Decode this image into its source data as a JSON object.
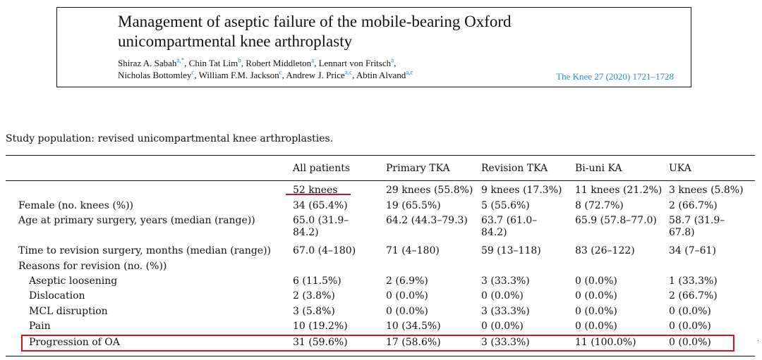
{
  "header": {
    "title_line1": "Management of aseptic failure of the mobile-bearing Oxford",
    "title_line2": "unicompartmental knee arthroplasty",
    "authors": [
      {
        "name": "Shiraz A. Sabah",
        "aff": "a,*",
        "sep": ", "
      },
      {
        "name": "Chin Tat Lim",
        "aff": "b",
        "sep": ", "
      },
      {
        "name": "Robert Middleton",
        "aff": "a",
        "sep": ", "
      },
      {
        "name": "Lennart von Fritsch",
        "aff": "a",
        "sep": ","
      },
      {
        "name": "Nicholas Bottomley",
        "aff": "c",
        "sep": ", "
      },
      {
        "name": "William F.M. Jackson",
        "aff": "c",
        "sep": ", "
      },
      {
        "name": "Andrew J. Price",
        "aff": "a,c",
        "sep": ", "
      },
      {
        "name": "Abtin Alvand",
        "aff": "a,c",
        "sep": ""
      }
    ],
    "citation": "The Knee 27 (2020) 1721–1728"
  },
  "table": {
    "caption": "Study population: revised unicompartmental knee arthroplasties.",
    "columns": [
      "All patients",
      "Primary TKA",
      "Revision TKA",
      "Bi-uni KA",
      "UKA"
    ],
    "knees_row": [
      "52 knees",
      "29 knees (55.8%)",
      "9 knees (17.3%)",
      "11 knees (21.2%)",
      "3 knees (5.8%)"
    ],
    "female": {
      "label": "Female (no. knees (%))",
      "values": [
        "34 (65.4%)",
        "19 (65.5%)",
        "5 (55.6%)",
        "8 (72.7%)",
        "2 (66.7%)"
      ]
    },
    "age": {
      "label": "Age at primary surgery, years (median (range))",
      "values": [
        "65.0 (31.9–\n84.2)",
        "64.2 (44.3–79.3)",
        "63.7 (61.0–\n84.2)",
        "65.9 (57.8–77.0)",
        "58.7 (31.9–\n67.8)"
      ]
    },
    "time": {
      "label": "Time to revision surgery, months (median (range))",
      "values": [
        "67.0 (4–180)",
        "71 (4–180)",
        "59 (13–118)",
        "83 (26–122)",
        "34 (7–61)"
      ]
    },
    "reasons_label": "Reasons for revision (no. (%))",
    "reasons": [
      {
        "label": "Aseptic loosening",
        "values": [
          "6 (11.5%)",
          "2 (6.9%)",
          "3 (33.3%)",
          "0 (0.0%)",
          "1 (33.3%)"
        ]
      },
      {
        "label": "Dislocation",
        "values": [
          "2 (3.8%)",
          "0 (0.0%)",
          "0 (0.0%)",
          "0 (0.0%)",
          "2 (66.7%)"
        ]
      },
      {
        "label": "MCL disruption",
        "values": [
          "3 (5.8%)",
          "0 (0.0%)",
          "3 (33.3%)",
          "0 (0.0%)",
          "0 (0.0%)"
        ]
      },
      {
        "label": "Pain",
        "values": [
          "10 (19.2%)",
          "10 (34.5%)",
          "0 (0.0%)",
          "0 (0.0%)",
          "0 (0.0%)"
        ]
      },
      {
        "label": "Progression of OA",
        "values": [
          "31 (59.6%)",
          "17 (58.6%)",
          "3 (33.3%)",
          "11 (100.0%)",
          "0 (0.0%)"
        ]
      }
    ]
  },
  "annotations": {
    "highlight_color": "#e0101c",
    "underline_color": "#c8102e",
    "dot": "·"
  }
}
